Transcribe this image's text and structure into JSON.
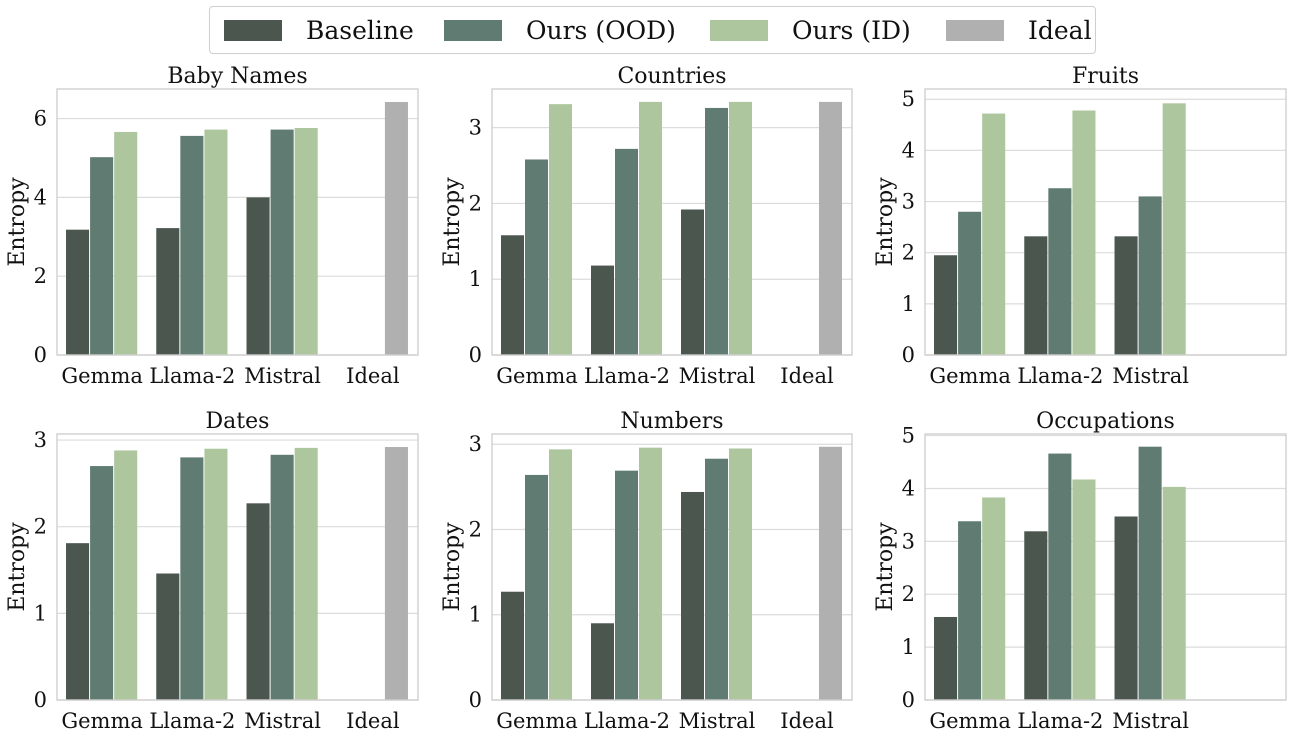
{
  "colors": {
    "Baseline": "#4b564e",
    "Ours (OOD)": "#5f7b72",
    "Ours (ID)": "#aec69e",
    "Ideal": "#b0b0b0"
  },
  "legend": {
    "items": [
      {
        "label": "Baseline"
      },
      {
        "label": "Ours (OOD)"
      },
      {
        "label": "Ours (ID)"
      },
      {
        "label": "Ideal"
      }
    ]
  },
  "chart_data": [
    {
      "type": "bar",
      "title": "Baby Names",
      "ylabel": "Entropy",
      "categories": [
        "Gemma",
        "Llama-2",
        "Mistral",
        "Ideal"
      ],
      "series": [
        {
          "name": "Baseline",
          "values": [
            3.18,
            3.22,
            4.0,
            null
          ]
        },
        {
          "name": "Ours (OOD)",
          "values": [
            5.02,
            5.56,
            5.72,
            null
          ]
        },
        {
          "name": "Ours (ID)",
          "values": [
            5.66,
            5.72,
            5.76,
            null
          ]
        },
        {
          "name": "Ideal",
          "values": [
            null,
            null,
            null,
            6.42
          ]
        }
      ],
      "ylim": [
        0,
        6.75
      ],
      "yticks": [
        0,
        2,
        4,
        6
      ],
      "grid": true
    },
    {
      "type": "bar",
      "title": "Countries",
      "ylabel": "Entropy",
      "categories": [
        "Gemma",
        "Llama-2",
        "Mistral",
        "Ideal"
      ],
      "series": [
        {
          "name": "Baseline",
          "values": [
            1.58,
            1.18,
            1.92,
            null
          ]
        },
        {
          "name": "Ours (OOD)",
          "values": [
            2.58,
            2.72,
            3.26,
            null
          ]
        },
        {
          "name": "Ours (ID)",
          "values": [
            3.31,
            3.34,
            3.34,
            null
          ]
        },
        {
          "name": "Ideal",
          "values": [
            null,
            null,
            null,
            3.34
          ]
        }
      ],
      "ylim": [
        0,
        3.51
      ],
      "yticks": [
        0,
        1,
        2,
        3
      ],
      "grid": true
    },
    {
      "type": "bar",
      "title": "Fruits",
      "ylabel": "Entropy",
      "categories": [
        "Gemma",
        "Llama-2",
        "Mistral"
      ],
      "series": [
        {
          "name": "Baseline",
          "values": [
            1.95,
            2.32,
            2.32
          ]
        },
        {
          "name": "Ours (OOD)",
          "values": [
            2.8,
            3.26,
            3.1
          ]
        },
        {
          "name": "Ours (ID)",
          "values": [
            4.72,
            4.78,
            4.92
          ]
        }
      ],
      "ylim": [
        0,
        5.2
      ],
      "yticks": [
        0,
        1,
        2,
        3,
        4,
        5
      ],
      "grid": true
    },
    {
      "type": "bar",
      "title": "Dates",
      "ylabel": "Entropy",
      "categories": [
        "Gemma",
        "Llama-2",
        "Mistral",
        "Ideal"
      ],
      "series": [
        {
          "name": "Baseline",
          "values": [
            1.81,
            1.46,
            2.27,
            null
          ]
        },
        {
          "name": "Ours (OOD)",
          "values": [
            2.7,
            2.8,
            2.83,
            null
          ]
        },
        {
          "name": "Ours (ID)",
          "values": [
            2.88,
            2.9,
            2.91,
            null
          ]
        },
        {
          "name": "Ideal",
          "values": [
            null,
            null,
            null,
            2.92
          ]
        }
      ],
      "ylim": [
        0,
        3.07
      ],
      "yticks": [
        0,
        1,
        2,
        3
      ],
      "grid": true
    },
    {
      "type": "bar",
      "title": "Numbers",
      "ylabel": "Entropy",
      "categories": [
        "Gemma",
        "Llama-2",
        "Mistral",
        "Ideal"
      ],
      "series": [
        {
          "name": "Baseline",
          "values": [
            1.27,
            0.9,
            2.44,
            null
          ]
        },
        {
          "name": "Ours (OOD)",
          "values": [
            2.64,
            2.69,
            2.83,
            null
          ]
        },
        {
          "name": "Ours (ID)",
          "values": [
            2.94,
            2.96,
            2.95,
            null
          ]
        },
        {
          "name": "Ideal",
          "values": [
            null,
            null,
            null,
            2.97
          ]
        }
      ],
      "ylim": [
        0,
        3.12
      ],
      "yticks": [
        0,
        1,
        2,
        3
      ],
      "grid": true
    },
    {
      "type": "bar",
      "title": "Occupations",
      "ylabel": "Entropy",
      "categories": [
        "Gemma",
        "Llama-2",
        "Mistral"
      ],
      "series": [
        {
          "name": "Baseline",
          "values": [
            1.57,
            3.19,
            3.47
          ]
        },
        {
          "name": "Ours (OOD)",
          "values": [
            3.38,
            4.66,
            4.79
          ]
        },
        {
          "name": "Ours (ID)",
          "values": [
            3.83,
            4.17,
            4.03
          ]
        }
      ],
      "ylim": [
        0,
        5.03
      ],
      "yticks": [
        0,
        1,
        2,
        3,
        4,
        5
      ],
      "grid": true
    }
  ]
}
